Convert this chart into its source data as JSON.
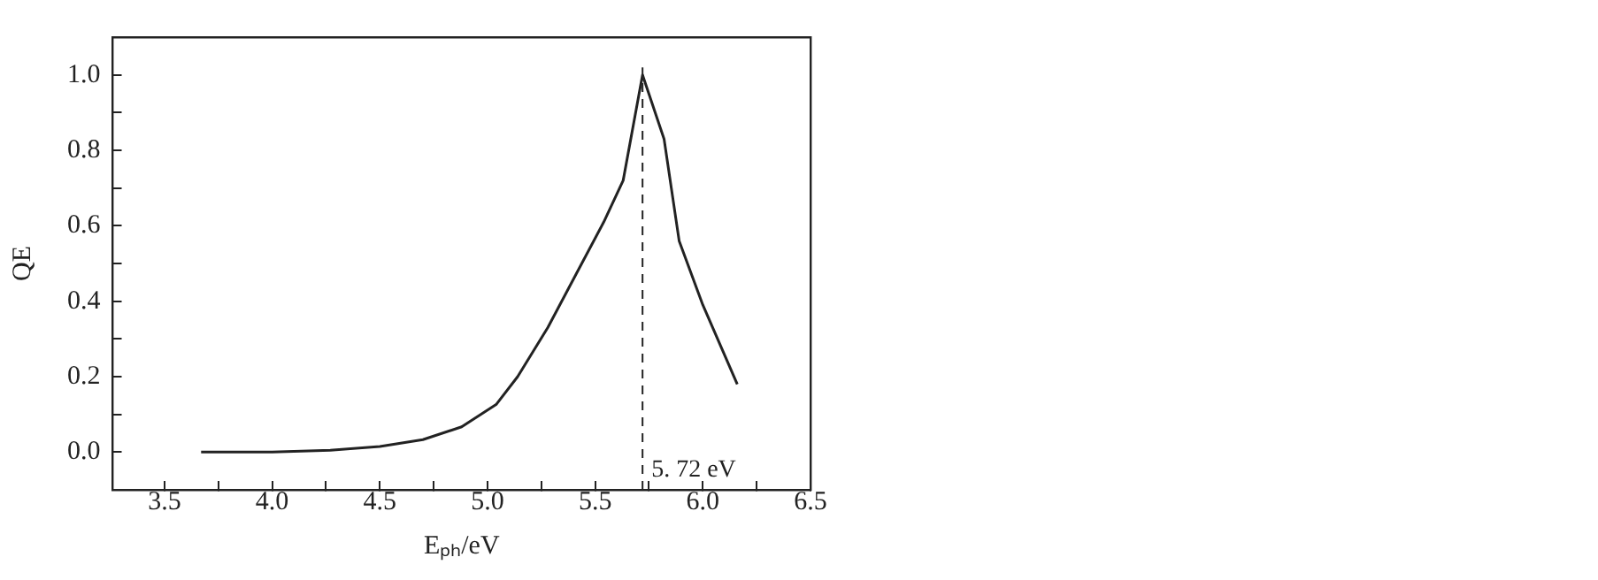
{
  "chart_data": {
    "type": "line",
    "xlabel": "Eₚₕ/eV",
    "ylabel": "QE",
    "x": [
      3.67,
      4.0,
      4.27,
      4.5,
      4.7,
      4.88,
      5.04,
      5.14,
      5.28,
      5.41,
      5.54,
      5.63,
      5.72,
      5.82,
      5.89,
      6.0,
      6.16
    ],
    "series": [
      {
        "color": "#222222",
        "values": [
          0.0,
          0.0,
          0.005,
          0.015,
          0.033,
          0.067,
          0.126,
          0.2,
          0.33,
          0.47,
          0.61,
          0.72,
          1.0,
          0.83,
          0.56,
          0.39,
          0.18
        ]
      }
    ],
    "xlim": [
      3.26,
      6.5
    ],
    "xticks": [
      3.5,
      {
        "value": 3.75,
        "label": null
      },
      {
        "value": 4,
        "label": "4.0"
      },
      {
        "value": 4.25,
        "label": null
      },
      4.5,
      {
        "value": 4.75,
        "label": null
      },
      {
        "value": 5,
        "label": "5.0"
      },
      {
        "value": 5.25,
        "label": null
      },
      5.5,
      {
        "value": 5.75,
        "label": null
      },
      {
        "value": 6,
        "label": "6.0"
      },
      {
        "value": 6.25,
        "label": null
      },
      6.5
    ],
    "ylim": [
      -0.1,
      1.1
    ],
    "yticks": [
      {
        "value": 0,
        "label": "0.0"
      },
      {
        "value": 0.1,
        "label": null
      },
      0.2,
      {
        "value": 0.3,
        "label": null
      },
      0.4,
      {
        "value": 0.5,
        "label": null
      },
      0.6,
      {
        "value": 0.7,
        "label": null
      },
      0.8,
      {
        "value": 0.9,
        "label": null
      },
      {
        "value": 1,
        "label": "1.0"
      }
    ],
    "ref_lines": [
      {
        "axis": "x",
        "value": 5.72,
        "label": "5. 72 eV",
        "line_style": "dashed",
        "color": "#222222"
      }
    ],
    "grid": false,
    "legend": false,
    "marker": "none",
    "line_style": "solid"
  }
}
